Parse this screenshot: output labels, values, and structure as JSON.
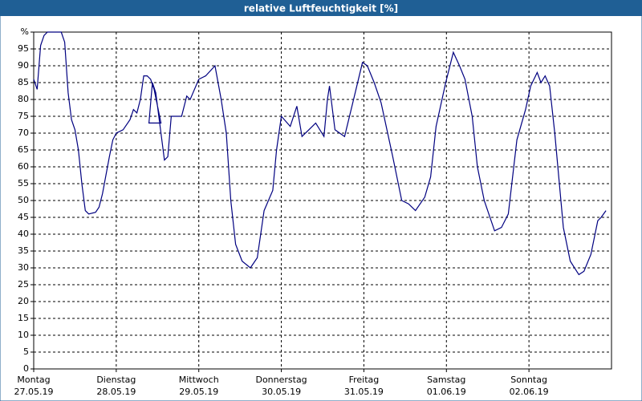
{
  "chart_data": {
    "type": "line",
    "title": "relative Luftfeuchtigkeit [%]",
    "xlim": [
      0,
      168
    ],
    "xticks": [
      {
        "value": 0,
        "label": [
          "Montag",
          "27.05.19"
        ]
      },
      {
        "value": 24,
        "label": [
          "Dienstag",
          "28.05.19"
        ]
      },
      {
        "value": 48,
        "label": [
          "Mittwoch",
          "29.05.19"
        ]
      },
      {
        "value": 72,
        "label": [
          "Donnerstag",
          "30.05.19"
        ]
      },
      {
        "value": 96,
        "label": [
          "Freitag",
          "31.05.19"
        ]
      },
      {
        "value": 120,
        "label": [
          "Samstag",
          "01.06.19"
        ]
      },
      {
        "value": 144,
        "label": [
          "Sonntag",
          "02.06.19"
        ]
      }
    ],
    "ylim": [
      0,
      100
    ],
    "yticks": [
      0,
      5,
      10,
      15,
      20,
      25,
      30,
      35,
      40,
      45,
      50,
      55,
      60,
      65,
      70,
      75,
      80,
      85,
      90,
      95,
      {
        "value": 100,
        "label": "%"
      }
    ],
    "grid": true,
    "series": [
      {
        "color": "#000080",
        "x": [
          0,
          1,
          2,
          3,
          4,
          6,
          8,
          9,
          10,
          11,
          12,
          13,
          14,
          15,
          16,
          18,
          19,
          20,
          22,
          23,
          24,
          26,
          28,
          29,
          30,
          31,
          32,
          33,
          34,
          35,
          36,
          37,
          33.5,
          34.5,
          35.5,
          38,
          39,
          40,
          43,
          44.5,
          45.5,
          48,
          50,
          52.7,
          54.5,
          56,
          57.3,
          58.7,
          60.6,
          63,
          65,
          67,
          69.5,
          70.6,
          72,
          74.6,
          76.5,
          78,
          80,
          82,
          84.4,
          85.4,
          86,
          87.6,
          90.4,
          93,
          95.6,
          97,
          99,
          101,
          104.4,
          107,
          109,
          111,
          113.7,
          115.4,
          117,
          119.8,
          122,
          123.8,
          125.4,
          127.5,
          129,
          131,
          134,
          136,
          138,
          140.5,
          143,
          144.5,
          146.4,
          147.5,
          148.7,
          150,
          151.5,
          154,
          156,
          158.5,
          160,
          162,
          164,
          165,
          166.4
        ],
        "values": [
          86,
          83,
          96,
          99,
          100,
          100,
          100,
          97,
          82,
          74,
          71,
          65,
          55,
          47,
          46,
          46.5,
          48,
          52,
          63,
          68,
          70,
          71,
          74,
          77,
          76,
          80,
          87,
          87,
          86,
          83,
          78,
          73,
          73,
          85,
          82,
          62,
          63,
          75,
          75,
          81,
          80,
          86,
          87,
          90,
          80,
          70,
          50,
          37,
          32,
          30,
          33,
          47,
          53,
          65,
          75,
          72,
          78,
          69,
          71,
          73,
          69,
          80,
          84,
          71,
          69,
          80,
          91,
          90,
          85,
          79,
          63,
          50,
          49,
          47,
          51,
          57,
          72,
          85,
          94,
          90,
          86,
          75,
          60,
          50,
          41,
          42,
          46,
          68,
          77,
          84,
          88,
          85,
          87,
          84,
          70,
          42,
          32,
          28,
          29,
          34,
          44,
          45,
          47
        ]
      }
    ]
  }
}
